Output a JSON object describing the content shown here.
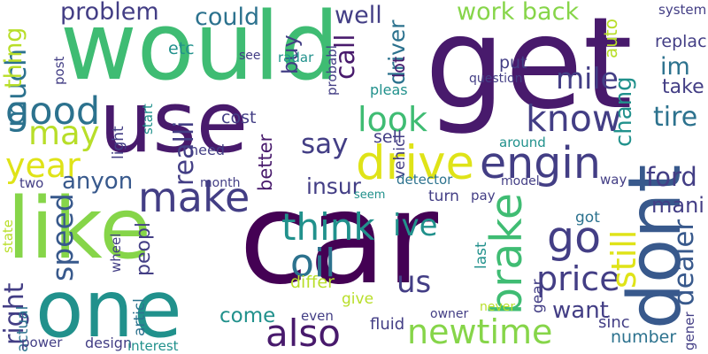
{
  "word_cloud": {
    "colors": {
      "dark_purple": "#481a6c",
      "indigo": "#433e85",
      "blue": "#38598c",
      "teal_blue": "#2c728e",
      "teal": "#21918c",
      "green_teal": "#29af7f",
      "green": "#3fbc73",
      "light_green": "#86d549",
      "yellow_green": "#b8de29",
      "yellow": "#dfe318"
    },
    "words": [
      {
        "id": "car",
        "text": "car",
        "color": "#440154"
      },
      {
        "id": "would",
        "text": "would",
        "color": "#3fbc73"
      },
      {
        "id": "get",
        "text": "get",
        "color": "#481a6c"
      },
      {
        "id": "use",
        "text": "use",
        "color": "#481a6c"
      },
      {
        "id": "like",
        "text": "like",
        "color": "#86d549"
      },
      {
        "id": "one",
        "text": "one",
        "color": "#21918c"
      },
      {
        "id": "dont",
        "text": "dont",
        "color": "#38598c"
      },
      {
        "id": "much",
        "text": "much",
        "color": "#2c728e"
      },
      {
        "id": "good",
        "text": "good",
        "color": "#2c728e"
      },
      {
        "id": "may",
        "text": "may",
        "color": "#b8de29"
      },
      {
        "id": "year",
        "text": "year",
        "color": "#dfe318"
      },
      {
        "id": "problem",
        "text": "problem",
        "color": "#433e85"
      },
      {
        "id": "could",
        "text": "could",
        "color": "#2c728e"
      },
      {
        "id": "well",
        "text": "well",
        "color": "#433e85"
      },
      {
        "id": "work-back",
        "text": "work back",
        "color": "#86d549"
      },
      {
        "id": "thing",
        "text": "thing",
        "color": "#b8de29"
      },
      {
        "id": "buy",
        "text": "buy",
        "color": "#433e85"
      },
      {
        "id": "call",
        "text": "call",
        "color": "#481a6c"
      },
      {
        "id": "driver",
        "text": "driver",
        "color": "#2c728e"
      },
      {
        "id": "look",
        "text": "look",
        "color": "#3fbc73"
      },
      {
        "id": "drive",
        "text": "drive",
        "color": "#dfe318"
      },
      {
        "id": "engin",
        "text": "engin",
        "color": "#433e85"
      },
      {
        "id": "know",
        "text": "know",
        "color": "#433e85"
      },
      {
        "id": "chang",
        "text": "chang",
        "color": "#21918c"
      },
      {
        "id": "mile",
        "text": "mile",
        "color": "#433e85"
      },
      {
        "id": "im",
        "text": "im",
        "color": "#2c728e"
      },
      {
        "id": "take",
        "text": "take",
        "color": "#433e85"
      },
      {
        "id": "tire",
        "text": "tire",
        "color": "#2c728e"
      },
      {
        "id": "system",
        "text": "system",
        "color": "#433e85"
      },
      {
        "id": "replac",
        "text": "replac",
        "color": "#433e85"
      },
      {
        "id": "auto",
        "text": "auto",
        "color": "#b8de29"
      },
      {
        "id": "realli",
        "text": "realli",
        "color": "#433e85"
      },
      {
        "id": "say",
        "text": "say",
        "color": "#433e85"
      },
      {
        "id": "better",
        "text": "better",
        "color": "#481a6c"
      },
      {
        "id": "make",
        "text": "make",
        "color": "#433e85"
      },
      {
        "id": "anyon",
        "text": "anyon",
        "color": "#38598c"
      },
      {
        "id": "insur",
        "text": "insur",
        "color": "#433e85"
      },
      {
        "id": "ford",
        "text": "ford",
        "color": "#433e85"
      },
      {
        "id": "mani",
        "text": "mani",
        "color": "#433e85"
      },
      {
        "id": "think",
        "text": "think",
        "color": "#21918c"
      },
      {
        "id": "ive",
        "text": "ive",
        "color": "#21918c"
      },
      {
        "id": "go",
        "text": "go",
        "color": "#433e85"
      },
      {
        "id": "oil",
        "text": "oil",
        "color": "#2c728e"
      },
      {
        "id": "speed",
        "text": "speed",
        "color": "#38598c"
      },
      {
        "id": "peopl",
        "text": "peopl",
        "color": "#433e85"
      },
      {
        "id": "brake",
        "text": "brake",
        "color": "#3fbc73"
      },
      {
        "id": "price",
        "text": "price",
        "color": "#433e85"
      },
      {
        "id": "still",
        "text": "still",
        "color": "#dfe318"
      },
      {
        "id": "dealer",
        "text": "dealer",
        "color": "#38598c"
      },
      {
        "id": "right",
        "text": "right",
        "color": "#433e85"
      },
      {
        "id": "come",
        "text": "come",
        "color": "#21918c"
      },
      {
        "id": "also",
        "text": "also",
        "color": "#481a6c"
      },
      {
        "id": "newtime",
        "text": "newtime",
        "color": "#86d549"
      },
      {
        "id": "want",
        "text": "want",
        "color": "#433e85"
      },
      {
        "id": "us",
        "text": "us",
        "color": "#433e85"
      },
      {
        "id": "differ",
        "text": "differ",
        "color": "#b8de29"
      },
      {
        "id": "number",
        "text": "number",
        "color": "#2c728e"
      },
      {
        "id": "etc",
        "text": "etc",
        "color": "#21918c"
      },
      {
        "id": "post",
        "text": "post",
        "color": "#433e85"
      },
      {
        "id": "see",
        "text": "see",
        "color": "#433e85"
      },
      {
        "id": "radar",
        "text": "radar",
        "color": "#21918c"
      },
      {
        "id": "probabl",
        "text": "probabl",
        "color": "#433e85"
      },
      {
        "id": "lot",
        "text": "lot",
        "color": "#481a6c"
      },
      {
        "id": "put",
        "text": "put",
        "color": "#433e85"
      },
      {
        "id": "question",
        "text": "question",
        "color": "#433e85"
      },
      {
        "id": "pleas",
        "text": "pleas",
        "color": "#21918c"
      },
      {
        "id": "cost",
        "text": "cost",
        "color": "#433e85"
      },
      {
        "id": "start",
        "text": "start",
        "color": "#21918c"
      },
      {
        "id": "light",
        "text": "light",
        "color": "#433e85"
      },
      {
        "id": "need",
        "text": "need",
        "color": "#433e85"
      },
      {
        "id": "sell",
        "text": "sell",
        "color": "#433e85"
      },
      {
        "id": "vehicl",
        "text": "vehicl",
        "color": "#433e85"
      },
      {
        "id": "around",
        "text": "around",
        "color": "#21918c"
      },
      {
        "id": "month",
        "text": "month",
        "color": "#433e85"
      },
      {
        "id": "two",
        "text": "two",
        "color": "#433e85"
      },
      {
        "id": "detector",
        "text": "detector",
        "color": "#2c728e"
      },
      {
        "id": "model",
        "text": "model",
        "color": "#433e85"
      },
      {
        "id": "way",
        "text": "way",
        "color": "#433e85"
      },
      {
        "id": "seem",
        "text": "seem",
        "color": "#21918c"
      },
      {
        "id": "turn",
        "text": "turn",
        "color": "#433e85"
      },
      {
        "id": "pay",
        "text": "pay",
        "color": "#433e85"
      },
      {
        "id": "got",
        "text": "got",
        "color": "#2c728e"
      },
      {
        "id": "state",
        "text": "state",
        "color": "#b8de29"
      },
      {
        "id": "wheel",
        "text": "wheel",
        "color": "#433e85"
      },
      {
        "id": "last",
        "text": "last",
        "color": "#21918c"
      },
      {
        "id": "give",
        "text": "give",
        "color": "#b8de29"
      },
      {
        "id": "gear",
        "text": "gear",
        "color": "#433e85"
      },
      {
        "id": "articl",
        "text": "articl",
        "color": "#2c728e"
      },
      {
        "id": "actual",
        "text": "actual",
        "color": "#2c728e"
      },
      {
        "id": "even",
        "text": "even",
        "color": "#433e85"
      },
      {
        "id": "owner",
        "text": "owner",
        "color": "#433e85"
      },
      {
        "id": "fluid",
        "text": "fluid",
        "color": "#433e85"
      },
      {
        "id": "never",
        "text": "never",
        "color": "#b8de29"
      },
      {
        "id": "sinc",
        "text": "sinc",
        "color": "#433e85"
      },
      {
        "id": "gener",
        "text": "gener",
        "color": "#433e85"
      },
      {
        "id": "power",
        "text": "power",
        "color": "#433e85"
      },
      {
        "id": "design",
        "text": "design",
        "color": "#433e85"
      },
      {
        "id": "interest",
        "text": "interest",
        "color": "#21918c"
      }
    ]
  }
}
